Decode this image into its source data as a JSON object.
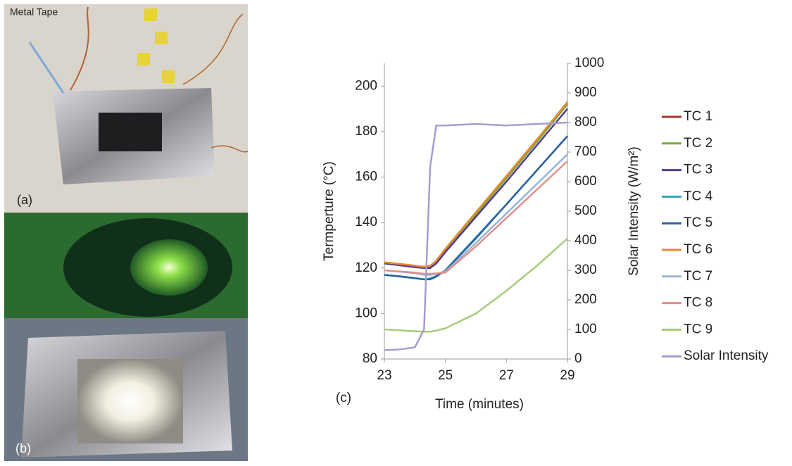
{
  "photos": {
    "annotation": "Metal Tape",
    "label_a": "(a)",
    "label_b": "(b)"
  },
  "chart_data": {
    "type": "line",
    "panel_label": "(c)",
    "x_label": "Time (minutes)",
    "y_label": "Termperture (°C)",
    "y2_label": "Solar Intensity (W/m²)",
    "x": [
      23,
      23.5,
      24,
      24.3,
      24.5,
      24.7,
      25,
      26,
      27,
      28,
      29
    ],
    "xlim": [
      23,
      29
    ],
    "xticks": [
      23,
      25,
      27,
      29
    ],
    "ylim": [
      80,
      210
    ],
    "yticks": [
      80,
      100,
      120,
      140,
      160,
      180,
      200
    ],
    "y2lim": [
      0,
      1000
    ],
    "y2ticks": [
      0,
      100,
      200,
      300,
      400,
      500,
      600,
      700,
      800,
      900,
      1000
    ],
    "grid": false,
    "legend": "right",
    "series": [
      {
        "name": "TC 1",
        "color": "#a3322d",
        "values": [
          122.5,
          121.8,
          121,
          120.5,
          120.8,
          123,
          128,
          144,
          160,
          176,
          193
        ]
      },
      {
        "name": "TC 2",
        "color": "#77a83a",
        "values": [
          122,
          121.3,
          120.5,
          120,
          120.3,
          122.5,
          127.5,
          143.5,
          159.5,
          175.5,
          192
        ]
      },
      {
        "name": "TC 3",
        "color": "#5b3a8c",
        "values": [
          122,
          121.2,
          120.4,
          120,
          120,
          122,
          127,
          142.5,
          158,
          174,
          190
        ]
      },
      {
        "name": "TC 4",
        "color": "#31a6c4",
        "values": [
          117,
          116.4,
          115.6,
          115,
          115.5,
          116.5,
          119,
          133.5,
          148,
          163,
          178
        ]
      },
      {
        "name": "TC 5",
        "color": "#2e5f9e",
        "values": [
          117,
          116.3,
          115.5,
          115,
          115,
          116.2,
          119,
          133,
          148,
          163,
          178
        ]
      },
      {
        "name": "TC 6",
        "color": "#e98a2d",
        "values": [
          122.5,
          121.8,
          121.1,
          120.5,
          121,
          123.2,
          128.5,
          144.5,
          160.5,
          176.5,
          193
        ]
      },
      {
        "name": "TC 7",
        "color": "#95b3d7",
        "values": [
          119,
          118.4,
          117.7,
          117,
          117,
          117.5,
          118.5,
          131,
          144,
          157,
          170
        ]
      },
      {
        "name": "TC 8",
        "color": "#e08f8c",
        "values": [
          119,
          118.5,
          118,
          117.5,
          117.5,
          117.6,
          118,
          129.5,
          142,
          154.5,
          167
        ]
      },
      {
        "name": "TC 9",
        "color": "#a6cc7a",
        "values": [
          93,
          92.6,
          92.2,
          92,
          92,
          92.5,
          93.5,
          100,
          110,
          121,
          133
        ]
      },
      {
        "name": "Solar Intensity",
        "color": "#a99bd0",
        "axis": "y2",
        "values": [
          30,
          32,
          40,
          100,
          650,
          790,
          790,
          795,
          790,
          795,
          800
        ]
      }
    ]
  }
}
